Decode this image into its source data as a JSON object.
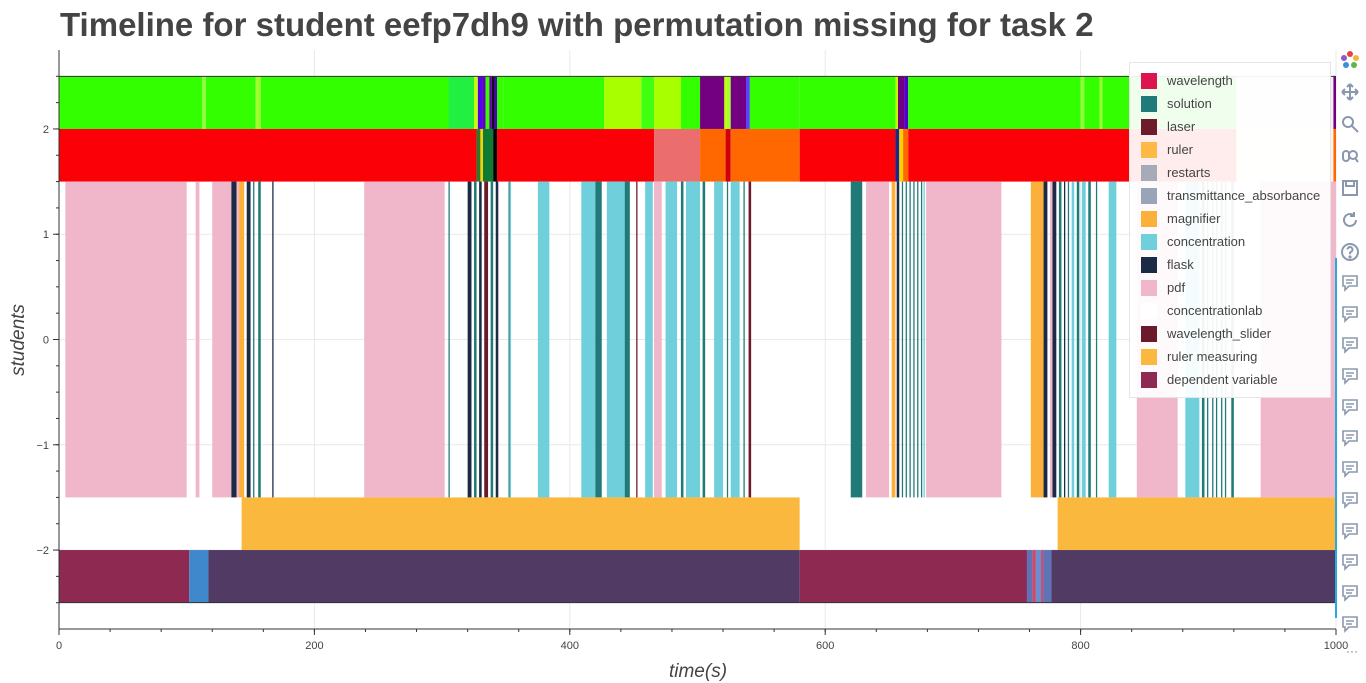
{
  "title": "Timeline for student eefp7dh9 with permutation missing for task 2",
  "chart_data": {
    "type": "timeline",
    "title": "Timeline for student eefp7dh9 with permutation missing for task 2",
    "xlabel": "time(s)",
    "ylabel": "students",
    "xlim": [
      0,
      1000
    ],
    "ylim": [
      -2.75,
      2.75
    ],
    "x_ticks": [
      0,
      200,
      400,
      600,
      800,
      1000
    ],
    "y_ticks": [
      -2,
      -1,
      0,
      1,
      2
    ],
    "x_tick_labels": [
      "0",
      "200",
      "400",
      "600",
      "800",
      "1000"
    ],
    "y_tick_labels": [
      "−2",
      "−1",
      "0",
      "1",
      "2"
    ],
    "grid": true,
    "legend_position": "top-right",
    "legend": [
      {
        "label": "wavelength",
        "color": "#dc1450"
      },
      {
        "label": "solution",
        "color": "#1f7a78"
      },
      {
        "label": "laser",
        "color": "#6e1c2c"
      },
      {
        "label": "ruler",
        "color": "#fdb944"
      },
      {
        "label": "restarts",
        "color": "#a7aab8"
      },
      {
        "label": "transmittance_absorbance",
        "color": "#9aa4b8"
      },
      {
        "label": "magnifier",
        "color": "#fbb03b"
      },
      {
        "label": "concentration",
        "color": "#6fd0dc"
      },
      {
        "label": "flask",
        "color": "#1b2b45"
      },
      {
        "label": "pdf",
        "color": "#f0b6ca"
      },
      {
        "label": "concentrationlab",
        "color": "#ffffff"
      },
      {
        "label": "wavelength_slider",
        "color": "#6a1a2b"
      },
      {
        "label": "ruler measuring",
        "color": "#fbb83f"
      },
      {
        "label": "dependent variable",
        "color": "#8e2a52"
      }
    ],
    "rows": [
      {
        "y_range": [
          2,
          2.5
        ],
        "segments": [
          {
            "x0": 0,
            "x1": 112,
            "color": "#34ff00"
          },
          {
            "x0": 112,
            "x1": 115,
            "color": "#8dff3a"
          },
          {
            "x0": 115,
            "x1": 154,
            "color": "#34ff00"
          },
          {
            "x0": 154,
            "x1": 158,
            "color": "#9dff2e"
          },
          {
            "x0": 158,
            "x1": 305,
            "color": "#34ff00"
          },
          {
            "x0": 305,
            "x1": 325,
            "color": "#22f040"
          },
          {
            "x0": 325,
            "x1": 328,
            "color": "#c8ff00"
          },
          {
            "x0": 328,
            "x1": 332,
            "color": "#5500ee"
          },
          {
            "x0": 332,
            "x1": 334,
            "color": "#6a00aa"
          },
          {
            "x0": 334,
            "x1": 337,
            "color": "#34ff00"
          },
          {
            "x0": 337,
            "x1": 339,
            "color": "#6a00aa"
          },
          {
            "x0": 339,
            "x1": 341,
            "color": "#111111"
          },
          {
            "x0": 341,
            "x1": 343,
            "color": "#4c00cc"
          },
          {
            "x0": 343,
            "x1": 348,
            "color": "#34ff00"
          },
          {
            "x0": 348,
            "x1": 427,
            "color": "#34ff00"
          },
          {
            "x0": 427,
            "x1": 456,
            "color": "#a8ff00"
          },
          {
            "x0": 456,
            "x1": 466,
            "color": "#40ff10"
          },
          {
            "x0": 466,
            "x1": 487,
            "color": "#a8ff00"
          },
          {
            "x0": 487,
            "x1": 502,
            "color": "#34ff00"
          },
          {
            "x0": 502,
            "x1": 521,
            "color": "#720081"
          },
          {
            "x0": 521,
            "x1": 523,
            "color": "#c0ff00"
          },
          {
            "x0": 523,
            "x1": 526,
            "color": "#a4ff2a"
          },
          {
            "x0": 526,
            "x1": 538,
            "color": "#720081"
          },
          {
            "x0": 538,
            "x1": 541,
            "color": "#5a40ff"
          },
          {
            "x0": 541,
            "x1": 580,
            "color": "#34ff00"
          },
          {
            "x0": 580,
            "x1": 655,
            "color": "#34ff00"
          },
          {
            "x0": 655,
            "x1": 657,
            "color": "#c0ff00"
          },
          {
            "x0": 657,
            "x1": 662,
            "color": "#720081"
          },
          {
            "x0": 662,
            "x1": 665,
            "color": "#4c00cc"
          },
          {
            "x0": 665,
            "x1": 800,
            "color": "#34ff00"
          },
          {
            "x0": 800,
            "x1": 803,
            "color": "#8dff3a"
          },
          {
            "x0": 803,
            "x1": 815,
            "color": "#34ff00"
          },
          {
            "x0": 815,
            "x1": 817,
            "color": "#9dff2e"
          },
          {
            "x0": 817,
            "x1": 922,
            "color": "#34ff00"
          },
          {
            "x0": 922,
            "x1": 998,
            "color": "#f5eef5"
          },
          {
            "x0": 998,
            "x1": 1000,
            "color": "#720081"
          }
        ]
      },
      {
        "y_range": [
          1.5,
          2
        ],
        "segments": [
          {
            "x0": 0,
            "x1": 327,
            "color": "#fc0007"
          },
          {
            "x0": 327,
            "x1": 330,
            "color": "#2b7a2b"
          },
          {
            "x0": 330,
            "x1": 332,
            "color": "#fcd200"
          },
          {
            "x0": 332,
            "x1": 340,
            "color": "#0f7a33"
          },
          {
            "x0": 340,
            "x1": 343,
            "color": "#000000"
          },
          {
            "x0": 343,
            "x1": 466,
            "color": "#fc0007"
          },
          {
            "x0": 466,
            "x1": 502,
            "color": "#ec6d6d"
          },
          {
            "x0": 502,
            "x1": 522,
            "color": "#ff6800"
          },
          {
            "x0": 522,
            "x1": 526,
            "color": "#d00010"
          },
          {
            "x0": 526,
            "x1": 580,
            "color": "#ff6800"
          },
          {
            "x0": 580,
            "x1": 655,
            "color": "#fc0007"
          },
          {
            "x0": 655,
            "x1": 658,
            "color": "#1a2a8a"
          },
          {
            "x0": 658,
            "x1": 661,
            "color": "#fcd200"
          },
          {
            "x0": 661,
            "x1": 665,
            "color": "#ff6800"
          },
          {
            "x0": 665,
            "x1": 922,
            "color": "#fc0007"
          },
          {
            "x0": 922,
            "x1": 998,
            "color": "#fff3ee"
          },
          {
            "x0": 998,
            "x1": 1000,
            "color": "#ff6800"
          }
        ]
      },
      {
        "y_range": [
          -1.5,
          1.5
        ],
        "segments": [
          {
            "x0": 5,
            "x1": 100,
            "color": "#f0b6ca"
          },
          {
            "x0": 107,
            "x1": 110,
            "color": "#f0b6ca"
          },
          {
            "x0": 120,
            "x1": 135,
            "color": "#f0b6ca"
          },
          {
            "x0": 135,
            "x1": 139,
            "color": "#1b2b45"
          },
          {
            "x0": 139,
            "x1": 141,
            "color": "#f0b6ca"
          },
          {
            "x0": 141,
            "x1": 145,
            "color": "#fbb03b"
          },
          {
            "x0": 147,
            "x1": 150,
            "color": "#1b2b45"
          },
          {
            "x0": 152,
            "x1": 153,
            "color": "#1f7a78"
          },
          {
            "x0": 156,
            "x1": 158,
            "color": "#1f7a78"
          },
          {
            "x0": 167,
            "x1": 168,
            "color": "#1b2b45"
          },
          {
            "x0": 239,
            "x1": 302,
            "color": "#f0b6ca"
          },
          {
            "x0": 305,
            "x1": 306,
            "color": "#1f7a78"
          },
          {
            "x0": 320,
            "x1": 323,
            "color": "#1b2b45"
          },
          {
            "x0": 325,
            "x1": 327,
            "color": "#1f7a78"
          },
          {
            "x0": 329,
            "x1": 331,
            "color": "#1b2b45"
          },
          {
            "x0": 333,
            "x1": 336,
            "color": "#6a1a2b"
          },
          {
            "x0": 338,
            "x1": 340,
            "color": "#1f7a78"
          },
          {
            "x0": 342,
            "x1": 344,
            "color": "#1b2b45"
          },
          {
            "x0": 352,
            "x1": 353,
            "color": "#1f7a78"
          },
          {
            "x0": 353,
            "x1": 354,
            "color": "#6fd0dc"
          },
          {
            "x0": 375,
            "x1": 384,
            "color": "#6fd0dc"
          },
          {
            "x0": 409,
            "x1": 420,
            "color": "#6fd0dc"
          },
          {
            "x0": 420,
            "x1": 425,
            "color": "#1f7a78"
          },
          {
            "x0": 429,
            "x1": 443,
            "color": "#6fd0dc"
          },
          {
            "x0": 443,
            "x1": 447,
            "color": "#1f7a78"
          },
          {
            "x0": 452,
            "x1": 453,
            "color": "#6a1a2b"
          },
          {
            "x0": 459,
            "x1": 465,
            "color": "#6fd0dc"
          },
          {
            "x0": 466,
            "x1": 472,
            "color": "#f0b6ca"
          },
          {
            "x0": 475,
            "x1": 484,
            "color": "#6fd0dc"
          },
          {
            "x0": 487,
            "x1": 489,
            "color": "#1f7a78"
          },
          {
            "x0": 491,
            "x1": 502,
            "color": "#6fd0dc"
          },
          {
            "x0": 504,
            "x1": 506,
            "color": "#1f7a78"
          },
          {
            "x0": 513,
            "x1": 520,
            "color": "#6fd0dc"
          },
          {
            "x0": 523,
            "x1": 524,
            "color": "#1f7a78"
          },
          {
            "x0": 526,
            "x1": 533,
            "color": "#6fd0dc"
          },
          {
            "x0": 536,
            "x1": 537,
            "color": "#1f7a78"
          },
          {
            "x0": 540,
            "x1": 542,
            "color": "#6a1a2b"
          },
          {
            "x0": 620,
            "x1": 629,
            "color": "#1f7a78"
          },
          {
            "x0": 632,
            "x1": 650,
            "color": "#f0b6ca"
          },
          {
            "x0": 652,
            "x1": 655,
            "color": "#fbb03b"
          },
          {
            "x0": 656,
            "x1": 658,
            "color": "#1b2b45"
          },
          {
            "x0": 660,
            "x1": 661,
            "color": "#1f7a78"
          },
          {
            "x0": 663,
            "x1": 664,
            "color": "#1f7a78"
          },
          {
            "x0": 666,
            "x1": 667,
            "color": "#1f7a78"
          },
          {
            "x0": 669,
            "x1": 670,
            "color": "#1f7a78"
          },
          {
            "x0": 672,
            "x1": 673,
            "color": "#1f7a78"
          },
          {
            "x0": 675,
            "x1": 676,
            "color": "#1f7a78"
          },
          {
            "x0": 677,
            "x1": 678,
            "color": "#6fd0dc"
          },
          {
            "x0": 679,
            "x1": 738,
            "color": "#f0b6ca"
          },
          {
            "x0": 761,
            "x1": 771,
            "color": "#fbb03b"
          },
          {
            "x0": 771,
            "x1": 774,
            "color": "#1b2b45"
          },
          {
            "x0": 776,
            "x1": 778,
            "color": "#f0b6ca"
          },
          {
            "x0": 778,
            "x1": 781,
            "color": "#1b2b45"
          },
          {
            "x0": 783,
            "x1": 785,
            "color": "#1f7a78"
          },
          {
            "x0": 787,
            "x1": 788,
            "color": "#1b2b45"
          },
          {
            "x0": 790,
            "x1": 791,
            "color": "#1f7a78"
          },
          {
            "x0": 793,
            "x1": 795,
            "color": "#6fd0dc"
          },
          {
            "x0": 797,
            "x1": 799,
            "color": "#1f7a78"
          },
          {
            "x0": 801,
            "x1": 804,
            "color": "#6fd0dc"
          },
          {
            "x0": 806,
            "x1": 808,
            "color": "#1f7a78"
          },
          {
            "x0": 812,
            "x1": 813,
            "color": "#1f7a78"
          },
          {
            "x0": 822,
            "x1": 828,
            "color": "#6fd0dc"
          },
          {
            "x0": 844,
            "x1": 876,
            "color": "#f0b6ca"
          },
          {
            "x0": 882,
            "x1": 893,
            "color": "#6fd0dc"
          },
          {
            "x0": 895,
            "x1": 897,
            "color": "#1f7a78"
          },
          {
            "x0": 899,
            "x1": 900,
            "color": "#1f7a78"
          },
          {
            "x0": 903,
            "x1": 904,
            "color": "#1f7a78"
          },
          {
            "x0": 906,
            "x1": 907,
            "color": "#1f7a78"
          },
          {
            "x0": 910,
            "x1": 911,
            "color": "#1f7a78"
          },
          {
            "x0": 913,
            "x1": 914,
            "color": "#1f7a78"
          },
          {
            "x0": 918,
            "x1": 920,
            "color": "#1f7a78"
          },
          {
            "x0": 941,
            "x1": 1000,
            "color": "#f0b6ca"
          }
        ]
      },
      {
        "y_range": [
          -2,
          -1.5
        ],
        "segments": [
          {
            "x0": 143,
            "x1": 580,
            "color": "#fbb83f"
          },
          {
            "x0": 782,
            "x1": 1000,
            "color": "#fbb83f"
          }
        ]
      },
      {
        "y_range": [
          -2.5,
          -2
        ],
        "segments": [
          {
            "x0": 0,
            "x1": 102,
            "color": "#8e2a52"
          },
          {
            "x0": 102,
            "x1": 117,
            "color": "#3f88cc"
          },
          {
            "x0": 117,
            "x1": 580,
            "color": "#513a63"
          },
          {
            "x0": 580,
            "x1": 758,
            "color": "#8e2a52"
          },
          {
            "x0": 758,
            "x1": 762,
            "color": "#5e74b8"
          },
          {
            "x0": 762,
            "x1": 765,
            "color": "#c05070"
          },
          {
            "x0": 765,
            "x1": 769,
            "color": "#6e8cd0"
          },
          {
            "x0": 769,
            "x1": 771,
            "color": "#c05070"
          },
          {
            "x0": 771,
            "x1": 777,
            "color": "#5e74b8"
          },
          {
            "x0": 777,
            "x1": 1000,
            "color": "#513a63"
          }
        ]
      }
    ]
  },
  "toolbar": {
    "tools": [
      {
        "name": "bokeh-logo-icon",
        "color": "#e6a23c"
      },
      {
        "name": "pan-icon",
        "color": "#8a98ad"
      },
      {
        "name": "box-zoom-icon",
        "color": "#8a98ad"
      },
      {
        "name": "wheel-zoom-icon",
        "color": "#8a98ad"
      },
      {
        "name": "save-icon",
        "color": "#8a98ad"
      },
      {
        "name": "reset-icon",
        "color": "#8a98ad"
      },
      {
        "name": "help-icon",
        "color": "#8a98ad"
      }
    ],
    "hover_tool_count": 12,
    "more_label": "···"
  }
}
